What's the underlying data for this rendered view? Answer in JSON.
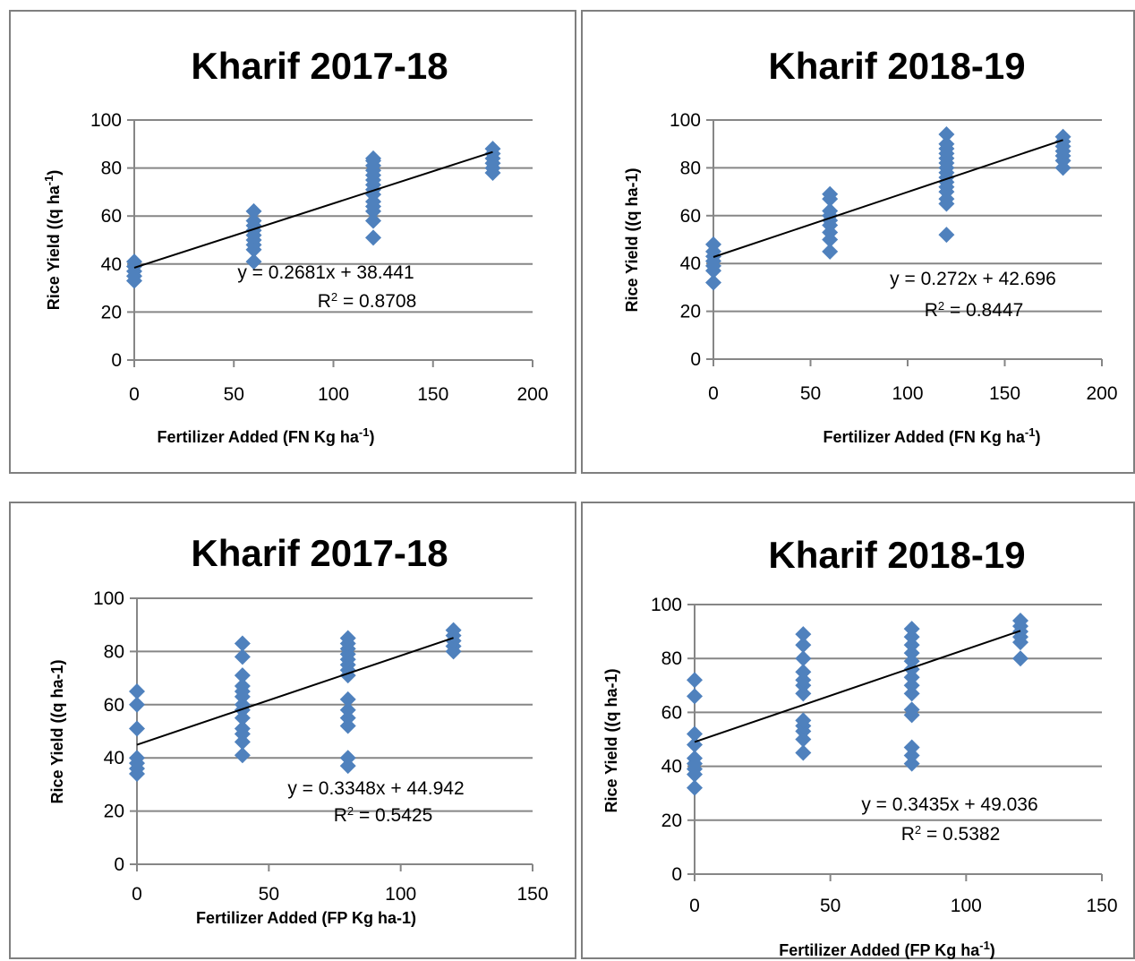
{
  "chart_data": [
    {
      "type": "scatter",
      "title": "Kharif 2017-18",
      "xlabel": "Fertilizer Added (FN Kg ha",
      "xlabel_sup": "-1",
      "xlabel_end": ")",
      "ylabel": "Rice Yield ((q ha",
      "ylabel_sup": "-1",
      "ylabel_end": ")",
      "xlim": [
        0,
        200
      ],
      "ylim": [
        0,
        100
      ],
      "xticks": [
        0,
        50,
        100,
        150,
        200
      ],
      "yticks": [
        0,
        20,
        40,
        60,
        80,
        100
      ],
      "grid": true,
      "marker_color": "#4f81bd",
      "points": [
        [
          0,
          33
        ],
        [
          0,
          35
        ],
        [
          0,
          37
        ],
        [
          0,
          39
        ],
        [
          0,
          41
        ],
        [
          60,
          41
        ],
        [
          60,
          46
        ],
        [
          60,
          48
        ],
        [
          60,
          50
        ],
        [
          60,
          52
        ],
        [
          60,
          54
        ],
        [
          60,
          56
        ],
        [
          60,
          58
        ],
        [
          60,
          62
        ],
        [
          120,
          51
        ],
        [
          120,
          58
        ],
        [
          120,
          62
        ],
        [
          120,
          64
        ],
        [
          120,
          66
        ],
        [
          120,
          69
        ],
        [
          120,
          71
        ],
        [
          120,
          73
        ],
        [
          120,
          75
        ],
        [
          120,
          77
        ],
        [
          120,
          79
        ],
        [
          120,
          81
        ],
        [
          120,
          83
        ],
        [
          120,
          84
        ],
        [
          180,
          78
        ],
        [
          180,
          80
        ],
        [
          180,
          82
        ],
        [
          180,
          84
        ],
        [
          180,
          86
        ],
        [
          180,
          88
        ]
      ],
      "trendline": {
        "slope": 0.2681,
        "intercept": 38.441,
        "xrange": [
          0,
          180
        ]
      },
      "equation": "y = 0.2681x + 38.441",
      "r2_label": "R",
      "r2_sup": "2",
      "r2_value": " = 0.8708"
    },
    {
      "type": "scatter",
      "title": "Kharif 2018-19",
      "xlabel": "Fertilizer Added (FN Kg ha",
      "xlabel_sup": "-1",
      "xlabel_end": ")",
      "ylabel": "Rice Yield ((q ha-1)",
      "ylabel_sup": "",
      "ylabel_end": "",
      "xlim": [
        0,
        200
      ],
      "ylim": [
        0,
        100
      ],
      "xticks": [
        0,
        50,
        100,
        150,
        200
      ],
      "yticks": [
        0,
        20,
        40,
        60,
        80,
        100
      ],
      "grid": true,
      "marker_color": "#4f81bd",
      "points": [
        [
          0,
          32
        ],
        [
          0,
          37
        ],
        [
          0,
          39
        ],
        [
          0,
          41
        ],
        [
          0,
          43
        ],
        [
          0,
          45
        ],
        [
          0,
          48
        ],
        [
          60,
          45
        ],
        [
          60,
          50
        ],
        [
          60,
          53
        ],
        [
          60,
          56
        ],
        [
          60,
          58
        ],
        [
          60,
          60
        ],
        [
          60,
          62
        ],
        [
          60,
          67
        ],
        [
          60,
          69
        ],
        [
          120,
          52
        ],
        [
          120,
          65
        ],
        [
          120,
          67
        ],
        [
          120,
          70
        ],
        [
          120,
          72
        ],
        [
          120,
          74
        ],
        [
          120,
          76
        ],
        [
          120,
          78
        ],
        [
          120,
          80
        ],
        [
          120,
          82
        ],
        [
          120,
          84
        ],
        [
          120,
          86
        ],
        [
          120,
          88
        ],
        [
          120,
          90
        ],
        [
          120,
          94
        ],
        [
          180,
          80
        ],
        [
          180,
          83
        ],
        [
          180,
          85
        ],
        [
          180,
          87
        ],
        [
          180,
          89
        ],
        [
          180,
          91
        ],
        [
          180,
          93
        ]
      ],
      "trendline": {
        "slope": 0.272,
        "intercept": 42.696,
        "xrange": [
          0,
          180
        ]
      },
      "equation": "y = 0.272x + 42.696",
      "r2_label": "R",
      "r2_sup": "2",
      "r2_value": " = 0.8447"
    },
    {
      "type": "scatter",
      "title": "Kharif 2017-18",
      "xlabel": "Fertilizer Added (FP Kg ha-1)",
      "xlabel_sup": "",
      "xlabel_end": "",
      "ylabel": "Rice Yield ((q ha-1)",
      "ylabel_sup": "",
      "ylabel_end": "",
      "xlim": [
        0,
        150
      ],
      "ylim": [
        0,
        100
      ],
      "xticks": [
        0,
        50,
        100,
        150
      ],
      "yticks": [
        0,
        20,
        40,
        60,
        80,
        100
      ],
      "grid": true,
      "marker_color": "#4f81bd",
      "points": [
        [
          0,
          34
        ],
        [
          0,
          36
        ],
        [
          0,
          38
        ],
        [
          0,
          40
        ],
        [
          0,
          51
        ],
        [
          0,
          60
        ],
        [
          0,
          65
        ],
        [
          40,
          41
        ],
        [
          40,
          46
        ],
        [
          40,
          49
        ],
        [
          40,
          51
        ],
        [
          40,
          55
        ],
        [
          40,
          58
        ],
        [
          40,
          60
        ],
        [
          40,
          63
        ],
        [
          40,
          65
        ],
        [
          40,
          67
        ],
        [
          40,
          71
        ],
        [
          40,
          78
        ],
        [
          40,
          83
        ],
        [
          80,
          37
        ],
        [
          80,
          40
        ],
        [
          80,
          52
        ],
        [
          80,
          55
        ],
        [
          80,
          58
        ],
        [
          80,
          62
        ],
        [
          80,
          71
        ],
        [
          80,
          73
        ],
        [
          80,
          75
        ],
        [
          80,
          77
        ],
        [
          80,
          79
        ],
        [
          80,
          81
        ],
        [
          80,
          83
        ],
        [
          80,
          85
        ],
        [
          120,
          80
        ],
        [
          120,
          82
        ],
        [
          120,
          84
        ],
        [
          120,
          86
        ],
        [
          120,
          88
        ]
      ],
      "trendline": {
        "slope": 0.3348,
        "intercept": 44.942,
        "xrange": [
          0,
          120
        ]
      },
      "equation": "y = 0.3348x + 44.942",
      "r2_label": "R",
      "r2_sup": "2",
      "r2_value": " = 0.5425"
    },
    {
      "type": "scatter",
      "title": "Kharif 2018-19",
      "xlabel": "Fertilizer Added (FP Kg ha",
      "xlabel_sup": "-1",
      "xlabel_end": ")",
      "ylabel": "Rice Yield ((q ha-1)",
      "ylabel_sup": "",
      "ylabel_end": "",
      "xlim": [
        0,
        150
      ],
      "ylim": [
        0,
        100
      ],
      "xticks": [
        0,
        50,
        100,
        150
      ],
      "yticks": [
        0,
        20,
        40,
        60,
        80,
        100
      ],
      "grid": true,
      "marker_color": "#4f81bd",
      "points": [
        [
          0,
          32
        ],
        [
          0,
          37
        ],
        [
          0,
          39
        ],
        [
          0,
          41
        ],
        [
          0,
          43
        ],
        [
          0,
          48
        ],
        [
          0,
          52
        ],
        [
          0,
          66
        ],
        [
          0,
          72
        ],
        [
          40,
          45
        ],
        [
          40,
          50
        ],
        [
          40,
          53
        ],
        [
          40,
          55
        ],
        [
          40,
          57
        ],
        [
          40,
          67
        ],
        [
          40,
          70
        ],
        [
          40,
          72
        ],
        [
          40,
          75
        ],
        [
          40,
          80
        ],
        [
          40,
          85
        ],
        [
          40,
          89
        ],
        [
          80,
          41
        ],
        [
          80,
          44
        ],
        [
          80,
          47
        ],
        [
          80,
          59
        ],
        [
          80,
          61
        ],
        [
          80,
          67
        ],
        [
          80,
          70
        ],
        [
          80,
          73
        ],
        [
          80,
          76
        ],
        [
          80,
          79
        ],
        [
          80,
          82
        ],
        [
          80,
          85
        ],
        [
          80,
          88
        ],
        [
          80,
          91
        ],
        [
          120,
          80
        ],
        [
          120,
          86
        ],
        [
          120,
          88
        ],
        [
          120,
          90
        ],
        [
          120,
          92
        ],
        [
          120,
          94
        ]
      ],
      "trendline": {
        "slope": 0.3435,
        "intercept": 49.036,
        "xrange": [
          0,
          120
        ]
      },
      "equation": "y = 0.3435x + 49.036",
      "r2_label": "R",
      "r2_sup": "2",
      "r2_value": " = 0.5382"
    }
  ]
}
